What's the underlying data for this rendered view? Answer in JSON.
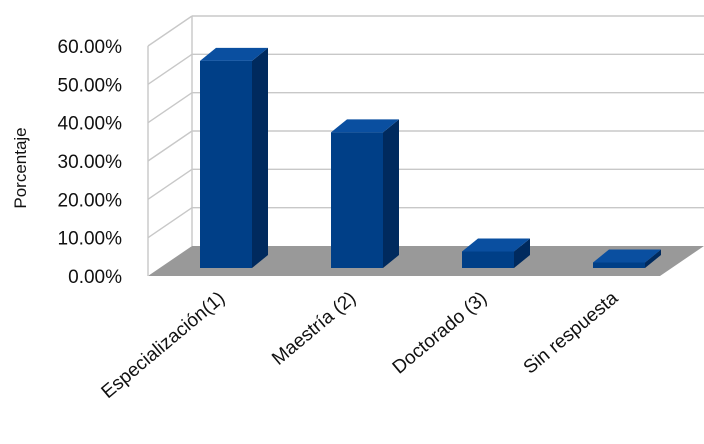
{
  "chart_data": {
    "type": "bar",
    "categories": [
      "Especialización(1)",
      "Maestría (2)",
      "Doctorado (3)",
      "Sin respuesta"
    ],
    "values": [
      56.5,
      37.0,
      4.5,
      1.5
    ],
    "ylabel": "Porcentaje",
    "ylim": [
      0,
      60
    ],
    "yticks": [
      0,
      10,
      20,
      30,
      40,
      50,
      60
    ],
    "ytick_labels": [
      "0.00%",
      "10.00%",
      "20.00%",
      "30.00%",
      "40.00%",
      "50.00%",
      "60.00%"
    ],
    "grid": true,
    "three_d": true,
    "colors": {
      "bar_front": "#003f87",
      "bar_side": "#002a5e",
      "bar_top": "#0a4fa0",
      "floor": "#999999",
      "grid": "#c8c8c8"
    }
  }
}
